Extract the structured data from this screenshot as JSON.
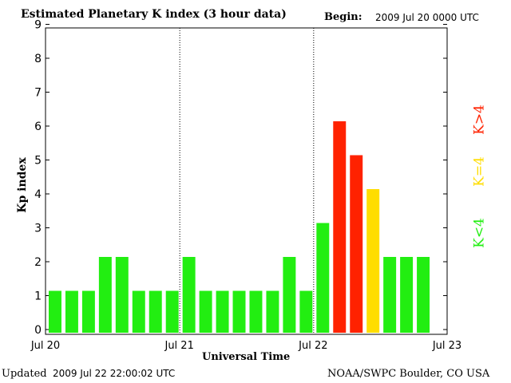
{
  "header": {
    "title": "Estimated Planetary K index (3 hour data)",
    "begin_label": "Begin:",
    "begin_value": "2009 Jul 20 0000 UTC"
  },
  "footer": {
    "updated_label": "Updated",
    "updated_value": "2009 Jul 22 22:00:02 UTC",
    "credit": "NOAA/SWPC Boulder, CO USA"
  },
  "legend": {
    "low": "K<4",
    "equal": "K=4",
    "high": "K>4"
  },
  "colors": {
    "low": "#22ee11",
    "equal": "#ffdd00",
    "high": "#ff2200",
    "axis": "#000000",
    "divider": "#000000"
  },
  "chart_data": {
    "type": "bar",
    "title": "Estimated Planetary K index (3 hour data)",
    "xlabel": "Universal Time",
    "ylabel": "Kp index",
    "ylim": [
      0,
      9
    ],
    "yticks": [
      "0",
      "1",
      "2",
      "3",
      "4",
      "5",
      "6",
      "7",
      "8",
      "9"
    ],
    "x_tick_labels": [
      "Jul 20",
      "Jul 21",
      "Jul 22",
      "Jul 23"
    ],
    "interval_hours": 3,
    "values": [
      1,
      1,
      1,
      2,
      2,
      1,
      1,
      1,
      2,
      1,
      1,
      1,
      1,
      1,
      2,
      1,
      3,
      6,
      5,
      4,
      2,
      2,
      2
    ],
    "total_slots": 24,
    "day_dividers_after_slot": [
      8,
      16
    ],
    "grid": false
  }
}
